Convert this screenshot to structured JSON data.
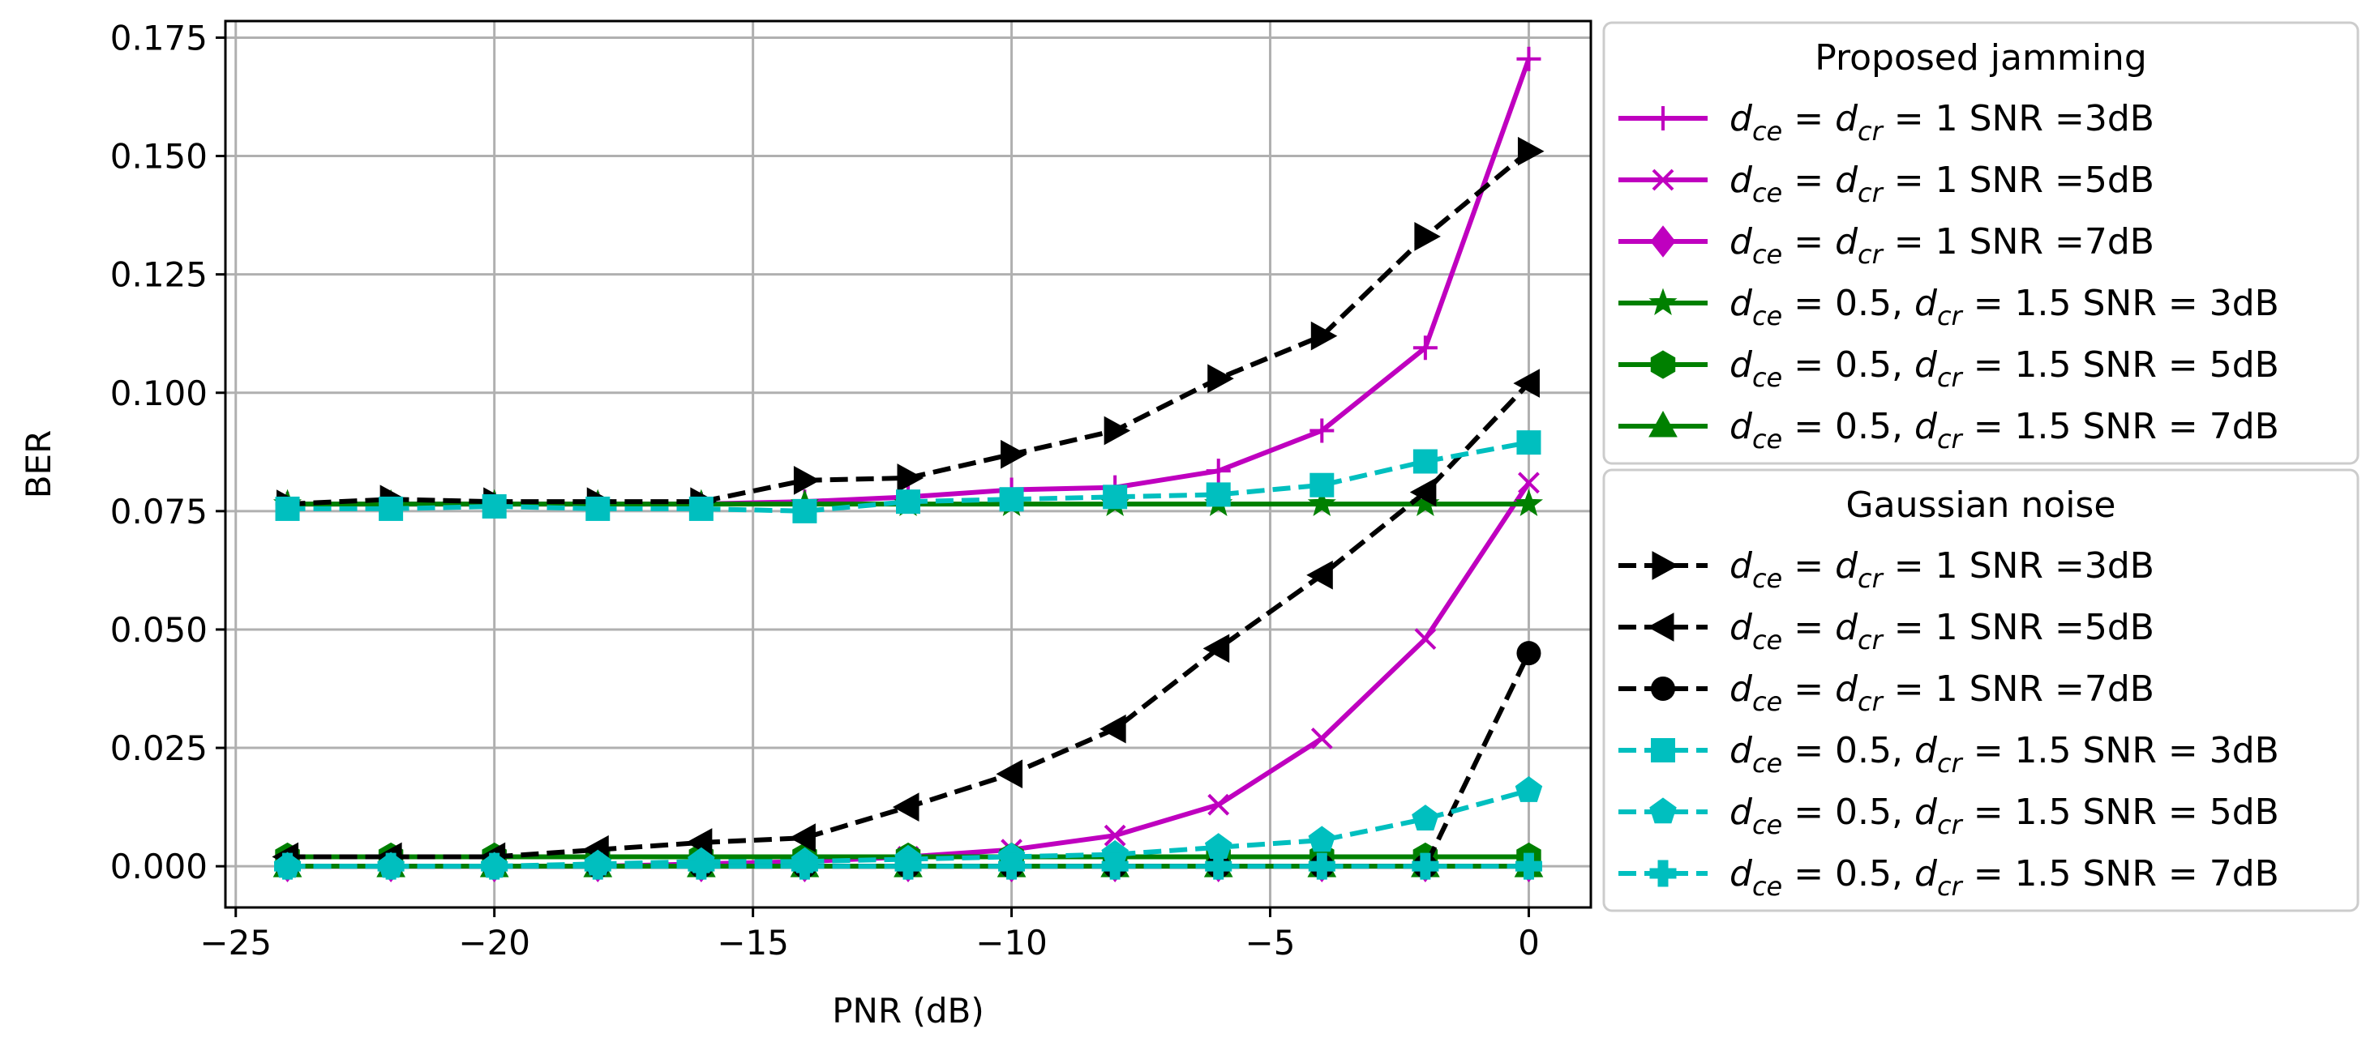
{
  "chart_data": {
    "type": "line",
    "title": "",
    "xlabel": "PNR (dB)",
    "ylabel": "BER",
    "xlim": [
      -25.2,
      1.2
    ],
    "ylim": [
      -0.0087,
      0.1785
    ],
    "xticks": [
      -25,
      -20,
      -15,
      -10,
      -5,
      0
    ],
    "xtick_labels": [
      "−25",
      "−20",
      "−15",
      "−10",
      "−5",
      "0"
    ],
    "yticks": [
      0.0,
      0.025,
      0.05,
      0.075,
      0.1,
      0.125,
      0.15,
      0.175
    ],
    "ytick_labels": [
      "0.000",
      "0.025",
      "0.050",
      "0.075",
      "0.100",
      "0.125",
      "0.150",
      "0.175"
    ],
    "grid": true,
    "x": [
      -24,
      -22,
      -20,
      -18,
      -16,
      -14,
      -12,
      -10,
      -8,
      -6,
      -4,
      -2,
      0
    ],
    "legend_groups": [
      {
        "title": "Proposed jamming",
        "placement": "outside-right-top",
        "series": [
          {
            "name": "d_ce = d_cr = 1 SNR =3dB",
            "label_parts": [
              "d",
              "ce",
              " = ",
              "d",
              "cr",
              " = 1 SNR =3dB"
            ],
            "color": "#bf00bf",
            "dash": "solid",
            "marker": "plus",
            "values": [
              0.0765,
              0.0765,
              0.0765,
              0.0765,
              0.0765,
              0.077,
              0.078,
              0.0795,
              0.08,
              0.0835,
              0.092,
              0.1095,
              0.1705
            ]
          },
          {
            "name": "d_ce = d_cr = 1 SNR =5dB",
            "label_parts": [
              "d",
              "ce",
              " = ",
              "d",
              "cr",
              " = 1 SNR =5dB"
            ],
            "color": "#bf00bf",
            "dash": "solid",
            "marker": "x",
            "values": [
              0.0,
              0.0,
              0.0,
              0.0,
              0.0005,
              0.001,
              0.002,
              0.0035,
              0.0065,
              0.013,
              0.027,
              0.048,
              0.081
            ]
          },
          {
            "name": "d_ce = d_cr = 1 SNR =7dB",
            "label_parts": [
              "d",
              "ce",
              " = ",
              "d",
              "cr",
              " = 1 SNR =7dB"
            ],
            "color": "#bf00bf",
            "dash": "solid",
            "marker": "diamond",
            "values": [
              0.0,
              0.0,
              0.0,
              0.0,
              0.0,
              0.0,
              0.0,
              0.0,
              0.0,
              0.0,
              0.0,
              0.0,
              0.0
            ]
          },
          {
            "name": "d_ce = 0.5, d_cr = 1.5 SNR = 3dB",
            "label_parts": [
              "d",
              "ce",
              " = 0.5, ",
              "d",
              "cr",
              " = 1.5 SNR = 3dB"
            ],
            "color": "#008000",
            "dash": "solid",
            "marker": "star",
            "values": [
              0.0765,
              0.0765,
              0.0765,
              0.0765,
              0.0765,
              0.0765,
              0.0765,
              0.0765,
              0.0765,
              0.0765,
              0.0765,
              0.0765,
              0.0765
            ]
          },
          {
            "name": "d_ce = 0.5, d_cr = 1.5 SNR = 5dB",
            "label_parts": [
              "d",
              "ce",
              " = 0.5, ",
              "d",
              "cr",
              " = 1.5 SNR = 5dB"
            ],
            "color": "#008000",
            "dash": "solid",
            "marker": "hexagon",
            "values": [
              0.002,
              0.002,
              0.002,
              0.002,
              0.002,
              0.002,
              0.002,
              0.002,
              0.002,
              0.002,
              0.002,
              0.002,
              0.002
            ]
          },
          {
            "name": "d_ce = 0.5, d_cr = 1.5 SNR = 7dB",
            "label_parts": [
              "d",
              "ce",
              " = 0.5, ",
              "d",
              "cr",
              " = 1.5 SNR = 7dB"
            ],
            "color": "#008000",
            "dash": "solid",
            "marker": "triangle-up",
            "values": [
              0.0,
              0.0,
              0.0,
              0.0,
              0.0,
              0.0,
              0.0,
              0.0,
              0.0,
              0.0,
              0.0,
              0.0,
              0.0
            ]
          }
        ]
      },
      {
        "title": "Gaussian noise",
        "placement": "outside-right-bottom",
        "series": [
          {
            "name": "d_ce = d_cr = 1 SNR =3dB",
            "label_parts": [
              "d",
              "ce",
              " = ",
              "d",
              "cr",
              " = 1 SNR =3dB"
            ],
            "color": "#000000",
            "dash": "dashed",
            "marker": "triangle-right",
            "values": [
              0.0765,
              0.0775,
              0.077,
              0.077,
              0.077,
              0.0815,
              0.082,
              0.087,
              0.092,
              0.103,
              0.112,
              0.133,
              0.151
            ]
          },
          {
            "name": "d_ce = d_cr = 1 SNR =5dB",
            "label_parts": [
              "d",
              "ce",
              " = ",
              "d",
              "cr",
              " = 1 SNR =5dB"
            ],
            "color": "#000000",
            "dash": "dashed",
            "marker": "triangle-left",
            "values": [
              0.002,
              0.002,
              0.002,
              0.0035,
              0.005,
              0.006,
              0.0125,
              0.0195,
              0.029,
              0.046,
              0.0615,
              0.079,
              0.102
            ]
          },
          {
            "name": "d_ce = d_cr = 1 SNR =7dB",
            "label_parts": [
              "d",
              "ce",
              " = ",
              "d",
              "cr",
              " = 1 SNR =7dB"
            ],
            "color": "#000000",
            "dash": "dashed",
            "marker": "circle",
            "values": [
              0.0,
              0.0,
              0.0,
              0.0,
              0.0,
              0.0,
              0.0,
              0.0,
              0.0,
              0.0,
              0.0,
              0.0,
              0.045
            ]
          },
          {
            "name": "d_ce = 0.5, d_cr = 1.5 SNR = 3dB",
            "label_parts": [
              "d",
              "ce",
              " = 0.5, ",
              "d",
              "cr",
              " = 1.5 SNR = 3dB"
            ],
            "color": "#00bfbf",
            "dash": "dashed",
            "marker": "square",
            "values": [
              0.0755,
              0.0755,
              0.076,
              0.0755,
              0.0755,
              0.075,
              0.077,
              0.0775,
              0.078,
              0.0785,
              0.0805,
              0.0855,
              0.0895
            ]
          },
          {
            "name": "d_ce = 0.5, d_cr = 1.5 SNR = 5dB",
            "label_parts": [
              "d",
              "ce",
              " = 0.5, ",
              "d",
              "cr",
              " = 1.5 SNR = 5dB"
            ],
            "color": "#00bfbf",
            "dash": "dashed",
            "marker": "pentagon",
            "values": [
              0.0,
              0.0,
              0.0,
              0.0005,
              0.001,
              0.001,
              0.0015,
              0.002,
              0.0025,
              0.004,
              0.0055,
              0.01,
              0.016
            ]
          },
          {
            "name": "d_ce = 0.5, d_cr = 1.5 SNR = 7dB",
            "label_parts": [
              "d",
              "ce",
              " = 0.5, ",
              "d",
              "cr",
              " = 1.5 SNR = 7dB"
            ],
            "color": "#00bfbf",
            "dash": "dashed",
            "marker": "plus-filled",
            "values": [
              0.0,
              0.0,
              0.0,
              0.0,
              0.0,
              0.0,
              0.0,
              0.0,
              0.0,
              0.0,
              0.0,
              0.0,
              0.0
            ]
          }
        ]
      }
    ]
  }
}
